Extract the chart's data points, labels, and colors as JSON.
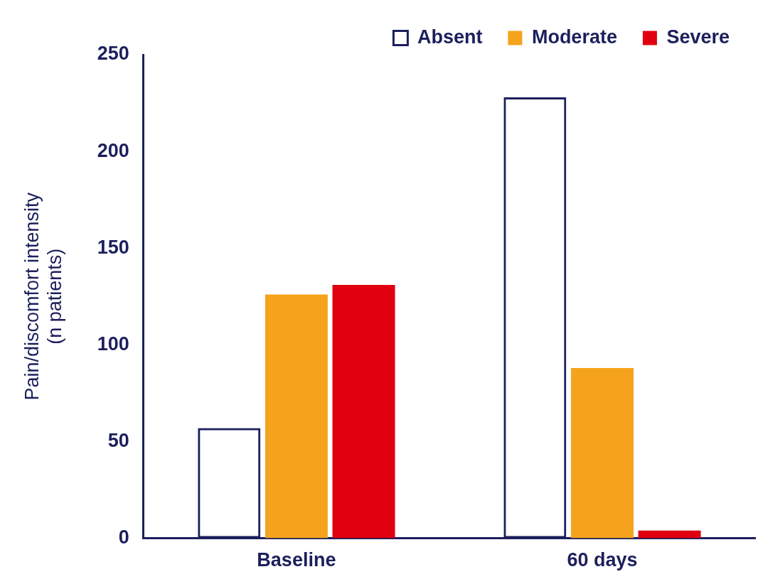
{
  "chart_data": {
    "type": "bar",
    "ylabel": "Pain/discomfort intensity\n(n patients)",
    "categories": [
      "Baseline",
      "60 days"
    ],
    "series": [
      {
        "name": "Absent",
        "color": "#1c1f5c",
        "values": [
          57,
          228
        ]
      },
      {
        "name": "Moderate",
        "color": "#f5a31c",
        "values": [
          126,
          88
        ]
      },
      {
        "name": "Severe",
        "color": "#e0000f",
        "values": [
          131,
          4
        ]
      }
    ],
    "ylim": [
      0,
      250
    ],
    "yticks": [
      0,
      50,
      100,
      150,
      200,
      250
    ],
    "grid": false,
    "legend": "top right"
  }
}
